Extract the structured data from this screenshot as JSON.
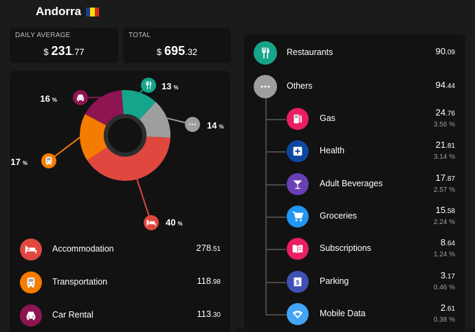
{
  "header": {
    "title": "Andorra",
    "flag_colors": [
      "#1c3f94",
      "#fedf00",
      "#d52b1e"
    ]
  },
  "stats": {
    "daily_label": "DAILY AVERAGE",
    "daily_currency": "$",
    "daily_int": "231",
    "daily_dec": ".77",
    "total_label": "TOTAL",
    "total_currency": "$",
    "total_int": "695",
    "total_dec": ".32"
  },
  "chart_data": {
    "type": "pie",
    "categories": [
      "Accommodation",
      "Transportation",
      "Car Rental",
      "Restaurants",
      "Others"
    ],
    "values": [
      40,
      17,
      16,
      13,
      14
    ],
    "labels": [
      "40",
      "17",
      "16",
      "13",
      "14"
    ],
    "unit": "%",
    "colors": [
      "#e0483f",
      "#f57c00",
      "#8e1452",
      "#16a58a",
      "#9e9e9e"
    ]
  },
  "left_list": [
    {
      "label": "Accommodation",
      "int": "278",
      "dec": ".51",
      "color": "#e0483f",
      "icon": "bed-icon"
    },
    {
      "label": "Transportation",
      "int": "118",
      "dec": ".98",
      "color": "#f57c00",
      "icon": "bus-icon"
    },
    {
      "label": "Car Rental",
      "int": "113",
      "dec": ".30",
      "color": "#8e1452",
      "icon": "car-icon"
    }
  ],
  "right_top": [
    {
      "label": "Restaurants",
      "int": "90",
      "dec": ".09",
      "color": "#16a58a",
      "icon": "utensils-icon"
    },
    {
      "label": "Others",
      "int": "94",
      "dec": ".44",
      "color": "#9e9e9e",
      "icon": "more-icon"
    }
  ],
  "right_sub": [
    {
      "label": "Gas",
      "int": "24",
      "dec": ".76",
      "pct": "3.56 %",
      "color": "#e91e63",
      "icon": "gas-pump-icon"
    },
    {
      "label": "Health",
      "int": "21",
      "dec": ".81",
      "pct": "3.14 %",
      "color": "#0d47a1",
      "icon": "medical-icon"
    },
    {
      "label": "Adult Beverages",
      "int": "17",
      "dec": ".87",
      "pct": "2.57 %",
      "color": "#6a3fb5",
      "icon": "cocktail-icon"
    },
    {
      "label": "Groceries",
      "int": "15",
      "dec": ".58",
      "pct": "2.24 %",
      "color": "#2196f3",
      "icon": "cart-icon"
    },
    {
      "label": "Subscriptions",
      "int": "8",
      "dec": ".64",
      "pct": "1.24 %",
      "color": "#e91e63",
      "icon": "book-icon"
    },
    {
      "label": "Parking",
      "int": "3",
      "dec": ".17",
      "pct": "0.46 %",
      "color": "#3f51b5",
      "icon": "parking-icon"
    },
    {
      "label": "Mobile Data",
      "int": "2",
      "dec": ".61",
      "pct": "0.38 %",
      "color": "#42a5f5",
      "icon": "wifi-icon"
    }
  ]
}
